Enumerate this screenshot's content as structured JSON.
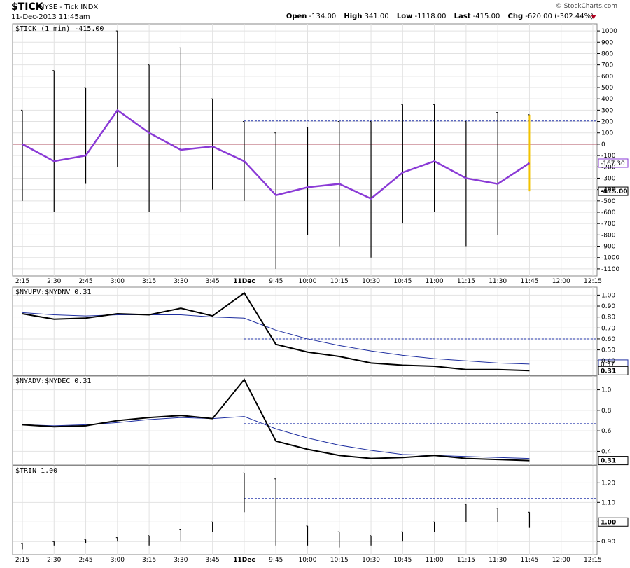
{
  "header": {
    "symbol": "$TICK",
    "exchange_name": "NYSE - Tick INDX",
    "datetime": "11-Dec-2013 11:45am",
    "brand": "© StockCharts.com",
    "quote": {
      "open_label": "Open",
      "open": "-134.00",
      "high_label": "High",
      "high": "341.00",
      "low_label": "Low",
      "low": "-1118.00",
      "last_label": "Last",
      "last": "-415.00",
      "chg_label": "Chg",
      "chg": "-620.00 (-302.44%)"
    }
  },
  "colors": {
    "price": "#000000",
    "ma_purple": "#8a3ad6",
    "ma_blue": "#1f2fa0",
    "zero_line": "#9b1b30",
    "ref_dashed": "#2233aa",
    "last_bar": "#f2c200",
    "grid": "#e2e2e2"
  },
  "x_axis_labels": [
    "2:15",
    "2:30",
    "2:45",
    "3:00",
    "3:15",
    "3:30",
    "3:45",
    "11Dec",
    "9:45",
    "10:00",
    "10:15",
    "10:30",
    "10:45",
    "11:00",
    "11:15",
    "11:30",
    "11:45",
    "12:00",
    "12:15"
  ],
  "chart_data": [
    {
      "type": "bar",
      "panel": "tick",
      "title": "$TICK (1 min) -415.00",
      "ylim": [
        -1150,
        1050
      ],
      "y_ticks": [
        1000,
        900,
        800,
        700,
        600,
        500,
        400,
        300,
        200,
        100,
        0,
        -100,
        -200,
        -300,
        -400,
        -500,
        -600,
        -700,
        -800,
        -900,
        -1000,
        -1100
      ],
      "reference_levels": {
        "zero": 0,
        "dashed": 205
      },
      "value_tags": {
        "ma_last": "-167.30",
        "last": "-415.00"
      },
      "ohlc_x": [
        "2:15",
        "2:30",
        "2:45",
        "3:00",
        "3:15",
        "3:30",
        "3:45",
        "11Dec",
        "9:45",
        "10:00",
        "10:15",
        "10:30",
        "10:45",
        "11:00",
        "11:15",
        "11:30",
        "11:45"
      ],
      "ohlc_high": [
        300,
        650,
        500,
        1000,
        700,
        850,
        400,
        200,
        100,
        150,
        200,
        200,
        350,
        350,
        200,
        280,
        260
      ],
      "ohlc_low": [
        -500,
        -600,
        -350,
        -200,
        -600,
        -600,
        -400,
        -500,
        -1100,
        -800,
        -900,
        -1000,
        -700,
        -600,
        -900,
        -800,
        -415
      ],
      "ma_line_x": [
        "2:15",
        "2:30",
        "2:45",
        "3:00",
        "3:15",
        "3:30",
        "3:45",
        "11Dec",
        "9:45",
        "10:00",
        "10:15",
        "10:30",
        "10:45",
        "11:00",
        "11:15",
        "11:30",
        "11:45"
      ],
      "ma_line_y": [
        0,
        -150,
        -100,
        300,
        100,
        -50,
        -20,
        -150,
        -450,
        -380,
        -350,
        -480,
        -250,
        -150,
        -300,
        -350,
        -167.3
      ]
    },
    {
      "type": "line",
      "panel": "nyupv",
      "title": "$NYUPV:$NYDNV 0.31",
      "ylim": [
        0.28,
        1.06
      ],
      "y_ticks": [
        1.0,
        0.9,
        0.8,
        0.7,
        0.6,
        0.5,
        0.4
      ],
      "reference_levels": {
        "dashed": 0.6
      },
      "value_tags": {
        "ma_last": "0.37",
        "last": "0.31"
      },
      "x": [
        "2:15",
        "2:30",
        "2:45",
        "3:00",
        "3:15",
        "3:30",
        "3:45",
        "11Dec",
        "9:45",
        "10:00",
        "10:15",
        "10:30",
        "10:45",
        "11:00",
        "11:15",
        "11:30",
        "11:45"
      ],
      "series_main": [
        0.83,
        0.78,
        0.79,
        0.83,
        0.82,
        0.88,
        0.81,
        1.02,
        0.55,
        0.48,
        0.44,
        0.38,
        0.36,
        0.35,
        0.32,
        0.32,
        0.31
      ],
      "series_ma": [
        0.84,
        0.82,
        0.81,
        0.82,
        0.82,
        0.82,
        0.8,
        0.79,
        0.68,
        0.6,
        0.54,
        0.49,
        0.45,
        0.42,
        0.4,
        0.38,
        0.37
      ]
    },
    {
      "type": "line",
      "panel": "nyadv",
      "title": "$NYADV:$NYDEC 0.31",
      "ylim": [
        0.28,
        1.12
      ],
      "y_ticks": [
        1.0,
        0.8,
        0.6,
        0.4
      ],
      "reference_levels": {
        "dashed": 0.67
      },
      "value_tags": {
        "last": "0.31"
      },
      "x": [
        "2:15",
        "2:30",
        "2:45",
        "3:00",
        "3:15",
        "3:30",
        "3:45",
        "11Dec",
        "9:45",
        "10:00",
        "10:15",
        "10:30",
        "10:45",
        "11:00",
        "11:15",
        "11:30",
        "11:45"
      ],
      "series_main": [
        0.66,
        0.64,
        0.65,
        0.7,
        0.73,
        0.75,
        0.72,
        1.1,
        0.5,
        0.42,
        0.36,
        0.33,
        0.34,
        0.36,
        0.33,
        0.32,
        0.31
      ],
      "series_ma": [
        0.66,
        0.65,
        0.66,
        0.68,
        0.71,
        0.73,
        0.72,
        0.74,
        0.62,
        0.53,
        0.46,
        0.41,
        0.37,
        0.36,
        0.35,
        0.34,
        0.33
      ]
    },
    {
      "type": "bar",
      "panel": "trin",
      "title": "$TRIN 1.00",
      "ylim": [
        0.84,
        1.28
      ],
      "y_ticks": [
        1.2,
        1.1,
        1.0,
        0.9
      ],
      "reference_levels": {
        "dashed": 1.12
      },
      "value_tags": {
        "last": "1.00"
      },
      "ohlc_x": [
        "2:15",
        "2:30",
        "2:45",
        "3:00",
        "3:15",
        "3:30",
        "3:45",
        "11Dec",
        "9:45",
        "10:00",
        "10:15",
        "10:30",
        "10:45",
        "11:00",
        "11:15",
        "11:30",
        "11:45"
      ],
      "ohlc_high": [
        0.89,
        0.9,
        0.91,
        0.92,
        0.93,
        0.96,
        1.0,
        1.25,
        1.22,
        0.98,
        0.95,
        0.93,
        0.95,
        1.0,
        1.09,
        1.07,
        1.05
      ],
      "ohlc_low": [
        0.86,
        0.88,
        0.89,
        0.9,
        0.88,
        0.9,
        0.95,
        1.05,
        0.88,
        0.88,
        0.87,
        0.88,
        0.9,
        0.95,
        1.0,
        1.0,
        0.97
      ]
    }
  ]
}
